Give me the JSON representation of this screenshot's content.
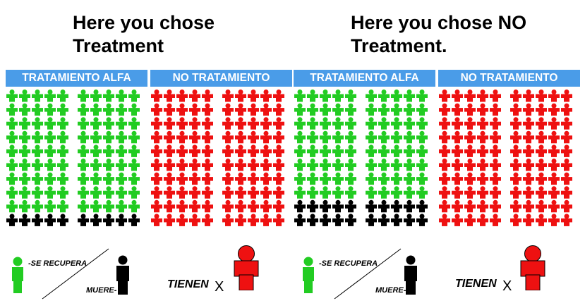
{
  "panels": [
    {
      "headline": [
        "Here you chose",
        "Treatment"
      ],
      "treatment_label": "TRATAMIENTO ALFA",
      "no_treatment_label": "NO TRATAMIENTO",
      "treatment_group": {
        "recovers_fraction": 0.9,
        "dies_fraction": 0.1
      },
      "no_treatment_group": {
        "sick_fraction": 1.0
      }
    },
    {
      "headline": [
        "Here you chose NO",
        "Treatment."
      ],
      "treatment_label": "TRATAMIENTO ALFA",
      "no_treatment_label": "NO TRATAMIENTO",
      "treatment_group": {
        "recovers_fraction": 0.8,
        "dies_fraction": 0.2
      },
      "no_treatment_group": {
        "sick_fraction": 1.0
      }
    }
  ],
  "legend": {
    "recovers_label": "-SE RECUPERA",
    "dies_label": "MUERE-",
    "sick_label": "TIENEN",
    "sick_symbol": "X"
  },
  "colors": {
    "recovers": "#22cc22",
    "dies": "#000000",
    "sick": "#ee1111",
    "tab_background": "#4a9ce8",
    "tab_text": "#ffffff"
  },
  "icons": {
    "person": "person-icon"
  }
}
